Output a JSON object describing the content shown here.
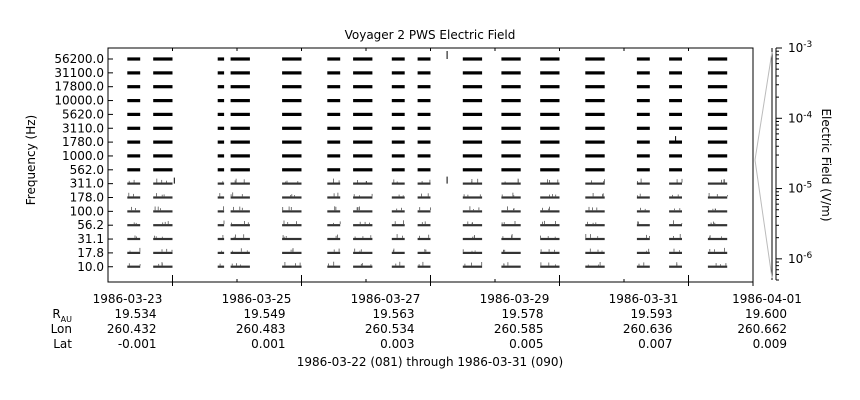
{
  "chart_data": {
    "type": "spectrogram",
    "title": "Voyager 2 PWS Electric Field",
    "ylabel": "Frequency (Hz)",
    "colorbar": {
      "label": "Electric Field (V/m)",
      "scale": "log",
      "range": [
        5e-07,
        0.001
      ],
      "ticks": [
        {
          "value": 0.001,
          "base": "10",
          "exp": "-3"
        },
        {
          "value": 0.0001,
          "base": "10",
          "exp": "-4"
        },
        {
          "value": 1e-05,
          "base": "10",
          "exp": "-5"
        },
        {
          "value": 1e-06,
          "base": "10",
          "exp": "-6"
        }
      ]
    },
    "frequency_channels": [
      "56200.0",
      "31100.0",
      "17800.0",
      "10000.0",
      "5620.0",
      "3110.0",
      "1780.0",
      "1000.0",
      "562.0",
      "311.0",
      "178.0",
      "100.0",
      "56.2",
      "31.1",
      "17.8",
      "10.0"
    ],
    "x_axis": {
      "ticks": [
        "1986-03-23",
        "1986-03-25",
        "1986-03-27",
        "1986-03-29",
        "1986-03-31",
        "1986-04-01"
      ],
      "range": [
        "1986-03-22",
        "1986-04-01"
      ]
    },
    "ephemeris": {
      "labels": {
        "r_main": "R",
        "r_sub": "AU",
        "lon": "Lon",
        "lat": "Lat"
      },
      "columns": [
        {
          "date": "1986-03-23",
          "r": "19.534",
          "lon": "260.432",
          "lat": "-0.001"
        },
        {
          "date": "1986-03-25",
          "r": "19.549",
          "lon": "260.483",
          "lat": "0.001"
        },
        {
          "date": "1986-03-27",
          "r": "19.563",
          "lon": "260.534",
          "lat": "0.003"
        },
        {
          "date": "1986-03-29",
          "r": "19.578",
          "lon": "260.585",
          "lat": "0.005"
        },
        {
          "date": "1986-03-31",
          "r": "19.593",
          "lon": "260.636",
          "lat": "0.007"
        },
        {
          "date": "1986-04-01",
          "r": "19.600",
          "lon": "260.662",
          "lat": "0.009"
        }
      ]
    },
    "data_segments": [
      [
        "1986-03-22T07:12",
        "1986-03-22T12:00"
      ],
      [
        "1986-03-22T16:48",
        "1986-03-23T00:00"
      ],
      [
        "1986-03-23T16:48",
        "1986-03-23T19:12"
      ],
      [
        "1986-03-23T21:36",
        "1986-03-24T04:48"
      ],
      [
        "1986-03-24T16:48",
        "1986-03-25T00:00"
      ],
      [
        "1986-03-25T09:36",
        "1986-03-25T14:24"
      ],
      [
        "1986-03-25T19:12",
        "1986-03-26T02:24"
      ],
      [
        "1986-03-26T09:36",
        "1986-03-26T14:24"
      ],
      [
        "1986-03-26T19:12",
        "1986-03-27T00:00"
      ],
      [
        "1986-03-27T12:00",
        "1986-03-27T19:12"
      ],
      [
        "1986-03-28T02:24",
        "1986-03-28T09:36"
      ],
      [
        "1986-03-28T16:48",
        "1986-03-29T00:00"
      ],
      [
        "1986-03-29T09:36",
        "1986-03-29T16:48"
      ],
      [
        "1986-03-30T04:48",
        "1986-03-30T09:36"
      ],
      [
        "1986-03-30T16:48",
        "1986-03-30T21:36"
      ],
      [
        "1986-03-31T07:12",
        "1986-03-31T14:24"
      ]
    ],
    "footer": "1986-03-22 (081) through 1986-03-31 (090)"
  }
}
